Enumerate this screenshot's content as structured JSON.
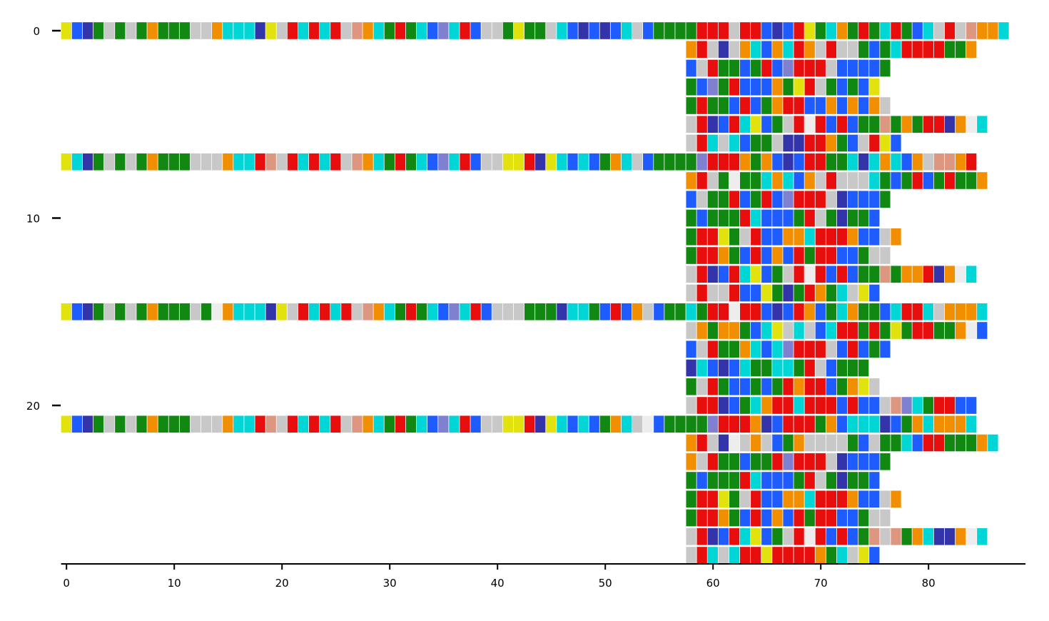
{
  "chart_data": {
    "type": "heatmap",
    "title": "",
    "xlabel": "",
    "ylabel": "",
    "xlim": [
      -0.5,
      89
    ],
    "ylim": [
      -0.5,
      28.5
    ],
    "x_ticks": [
      0,
      10,
      20,
      30,
      40,
      50,
      60,
      70,
      80
    ],
    "y_ticks": [
      0,
      10,
      20
    ],
    "y_inverted": true,
    "grid": false,
    "legend": "none",
    "alphabet": "ACDEFGHIKLMNPQRSTVWY-",
    "palette": {
      "A": "#118811",
      "C": "#118811",
      "D": "#e80e0e",
      "E": "#e80e0e",
      "F": "#3434aa",
      "G": "#f28f00",
      "H": "#1f5cff",
      "I": "#118811",
      "K": "#e80e0e",
      "L": "#118811",
      "M": "#118811",
      "N": "#1f5cff",
      "P": "#e2e20f",
      "Q": "#1f5cff",
      "R": "#e80e0e",
      "S": "#00d6d6",
      "T": "#00d6d6",
      "V": "#118811",
      "W": "#8080d0",
      "Y": "#dd9680",
      "-": "#c8c8c8",
      "space": "#ededed"
    },
    "rows": [
      {
        "index": 0,
        "start": 0,
        "seq": "PNFI-L-IGLAA--GSTTFP-ETDTD-YGTLRLTQWSEN--LPVM-THFNFQT-HMLAAEED-EDHFHKPLSGVEATEIHT-K-YGGS"
      },
      {
        "index": 1,
        "start": 58,
        "seq": "GD-F-GTNGSRG-D--VHLSEEEEAMG"
      },
      {
        "index": 2,
        "start": 58,
        "seq": "H-DALHADHWRDD-HNNNM"
      },
      {
        "index": 3,
        "start": 58,
        "seq": "MHWAEHQNGAPD-MHVNP"
      },
      {
        "index": 4,
        "start": 58,
        "seq": "LEVVNDHAGKDNHGHGHG-"
      },
      {
        "index": 5,
        "start": 58,
        "seq": "-DFNKSPHA-D KHDNLIYLGMDEFG S"
      },
      {
        "index": 6,
        "start": 58,
        "seq": "-ES-TNLL-FFKDGAN-DPH"
      },
      {
        "index": 7,
        "start": 0,
        "seq": "PSFI-L-IGLAA---GSTEY-ETDTD-YGTLRLTQWSEN--PPEFPTHSNLGT-HMLAAWEEDGAGNFHKEMMSFTGSQG-YYGD"
      },
      {
        "index": 8,
        "start": 58,
        "seq": "GD-L LVSGSHG-D---TIHMEHVDAMG"
      },
      {
        "index": 9,
        "start": 58,
        "seq": "H-MAEHADHWRDD-FNNNM"
      },
      {
        "index": 10,
        "start": 58,
        "seq": "LHLAADSHNQVD-AFMAH"
      },
      {
        "index": 11,
        "start": 58,
        "seq": "LDKPM-DHQGGTDDDGHN-G"
      },
      {
        "index": 12,
        "start": 58,
        "seq": "ADEGLHDHGNDLEENHL--"
      },
      {
        "index": 13,
        "start": 58,
        "seq": "-DFNKSPHA-D KHDNAAYAGGEFG S"
      },
      {
        "index": 14,
        "start": 58,
        "seq": "-E--EHNPAFMDGAS-PH"
      },
      {
        "index": 15,
        "start": 0,
        "seq": "PNFI-L-IGLAA-A GSTTFP-ETDTD-YGTLRLTQWSEN---IILFSSLHKNG-HMATIED DEHFHKGHMSGVLNTRES-GGGS"
      },
      {
        "index": 16,
        "start": 58,
        "seq": "-GLGGAHTP-S-HSDDLKLPMRDLAG H"
      },
      {
        "index": 17,
        "start": 58,
        "seq": "H-DALGTHSWEDD-NDNMN"
      },
      {
        "index": 18,
        "start": 58,
        "seq": "FSNFNSLMSSAD-HLIA"
      },
      {
        "index": 19,
        "start": 58,
        "seq": "L-DLNHLHADGEENAGP-"
      },
      {
        "index": 20,
        "start": 58,
        "seq": "-DKFNMTGEESDDEHKHQ-YWSAEKNH"
      },
      {
        "index": 21,
        "start": 0,
        "seq": "PNFI-L-IGLAA---GSTEY-ETDTD-YGTLRLTQWSEN--PPEFPTHSNLGT- HMLAAWEEDGFHEKEAGNSSTFNLGSGGGS"
      },
      {
        "index": 22,
        "start": 58,
        "seq": "GD-F -G-HAG----LH-ALSHERLAMGS"
      },
      {
        "index": 23,
        "start": 58,
        "seq": "G-DALHAMDWRDD-FNNNM"
      },
      {
        "index": 24,
        "start": 58,
        "seq": "LHLAADSHNQVD-AFMAH"
      },
      {
        "index": 25,
        "start": 58,
        "seq": "LDKPM-DHQGGTDDDGHN-G"
      },
      {
        "index": 26,
        "start": 58,
        "seq": "ADEGLHDHGNDLEENHL--"
      },
      {
        "index": 27,
        "start": 58,
        "seq": "-DFNKSPHA-D KHDNLY-YAGSFFG S"
      },
      {
        "index": 28,
        "start": 58,
        "seq": "-DS-TEKPEDDDGAS-PH"
      }
    ]
  }
}
